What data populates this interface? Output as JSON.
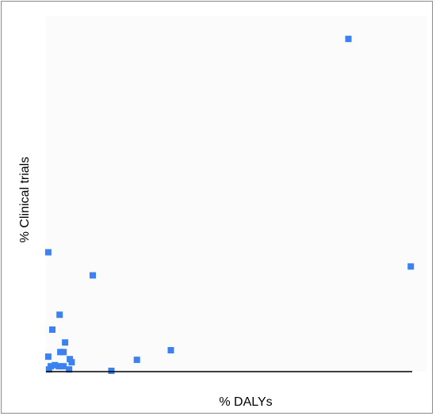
{
  "chart_data": {
    "type": "scatter",
    "title": "",
    "xlabel": "% DALYs",
    "ylabel": "% Clinical trials",
    "xlim": [
      0,
      100
    ],
    "ylim": [
      0,
      100
    ],
    "grid": false,
    "legend": "none",
    "marker_color": "#3b82f0",
    "points": [
      {
        "x": 82.5,
        "y": 93.5
      },
      {
        "x": 99.6,
        "y": 29.4
      },
      {
        "x": 0.2,
        "y": 33.4
      },
      {
        "x": 12.4,
        "y": 26.9
      },
      {
        "x": 3.3,
        "y": 15.8
      },
      {
        "x": 1.3,
        "y": 11.6
      },
      {
        "x": 4.8,
        "y": 8.0
      },
      {
        "x": 3.5,
        "y": 5.3
      },
      {
        "x": 4.4,
        "y": 5.3
      },
      {
        "x": 6.1,
        "y": 3.3
      },
      {
        "x": 6.6,
        "y": 2.4
      },
      {
        "x": 0.9,
        "y": 1.3
      },
      {
        "x": 2.0,
        "y": 1.6
      },
      {
        "x": 3.1,
        "y": 1.3
      },
      {
        "x": 4.4,
        "y": 1.3
      },
      {
        "x": 5.9,
        "y": 0.4
      },
      {
        "x": 0.4,
        "y": 0.4
      },
      {
        "x": 0.2,
        "y": 4.0
      },
      {
        "x": 17.5,
        "y": 0.0
      },
      {
        "x": 24.5,
        "y": 3.1
      },
      {
        "x": 33.8,
        "y": 5.8
      }
    ]
  }
}
